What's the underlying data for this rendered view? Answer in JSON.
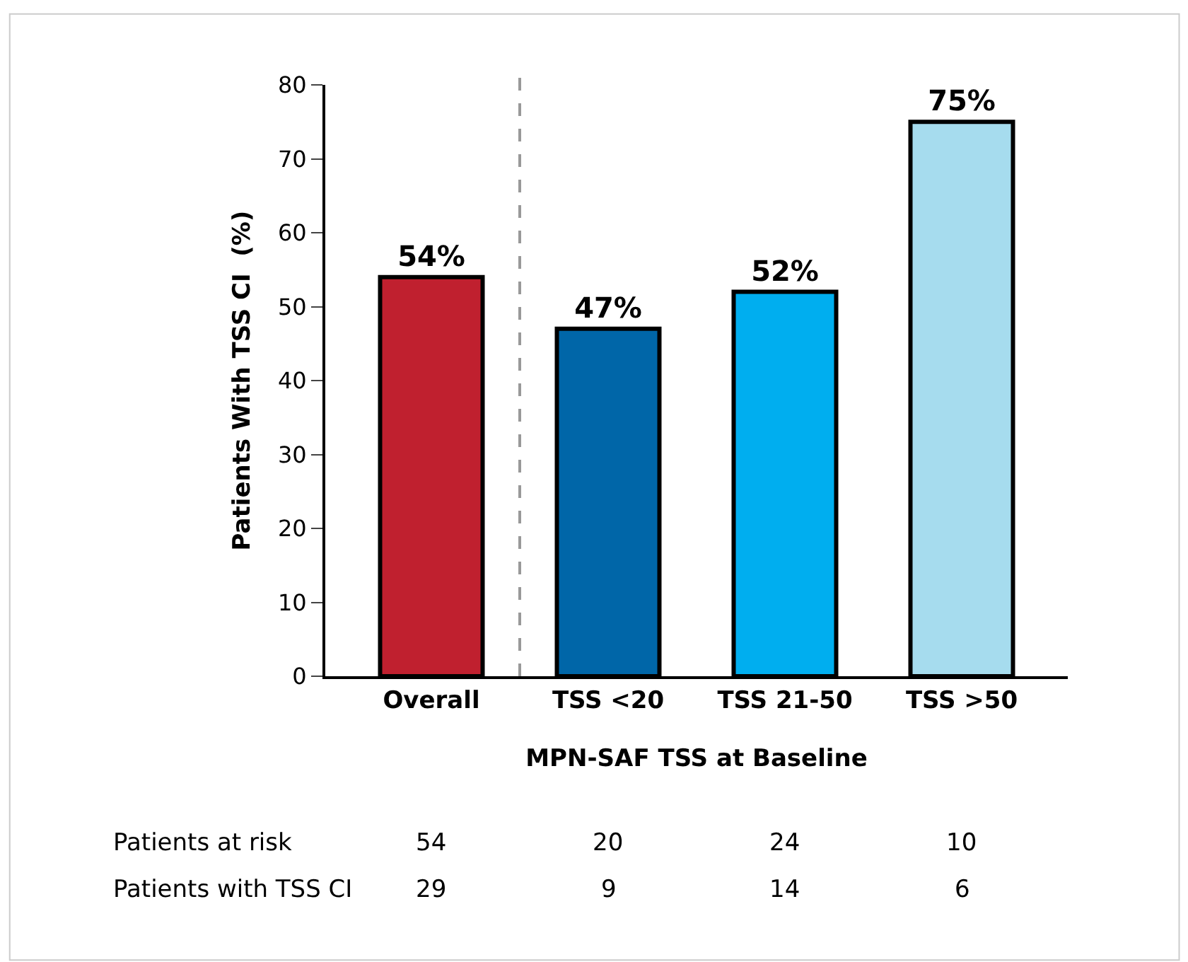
{
  "chart_data": {
    "type": "bar",
    "ylabel": "Patients With TSS CI  (%)",
    "xlabel": "MPN-SAF TSS at Baseline",
    "categories": [
      "Overall",
      "TSS <20",
      "TSS 21-50",
      "TSS >50"
    ],
    "values": [
      54,
      47,
      52,
      75
    ],
    "value_labels": [
      "54%",
      "47%",
      "52%",
      "75%"
    ],
    "colors": [
      "#c0202f",
      "#0066a8",
      "#00aeef",
      "#a6dcee"
    ],
    "ylim": [
      0,
      80
    ],
    "yticks": [
      0,
      10,
      20,
      30,
      40,
      50,
      60,
      70,
      80
    ],
    "annotations": [
      "Patients at risk",
      "54",
      "20",
      "24",
      "10",
      "Patients with TSS CI",
      "29",
      "9",
      "14",
      "6"
    ]
  }
}
